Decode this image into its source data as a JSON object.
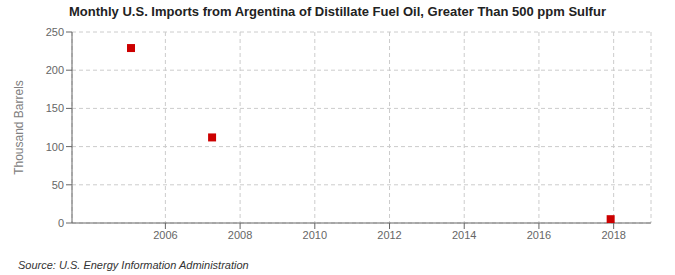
{
  "chart_data": {
    "type": "scatter",
    "title": "Monthly U.S. Imports from Argentina of Distillate Fuel Oil, Greater Than 500 ppm Sulfur",
    "y_label": "Thousand Barrels",
    "annotations": [
      "Source: U.S. Energy Information Administration"
    ],
    "x": [
      2005.08,
      2007.25,
      2017.92
    ],
    "values": [
      229,
      112,
      5
    ],
    "color": "#cc0000",
    "marker": "square",
    "xlim": [
      2003.5,
      2019.0
    ],
    "ylim": [
      0,
      250
    ],
    "xticks": [
      2006,
      2008,
      2010,
      2012,
      2014,
      2016,
      2018
    ],
    "yticks": [
      0,
      50,
      100,
      150,
      200,
      250
    ],
    "grid": true
  }
}
